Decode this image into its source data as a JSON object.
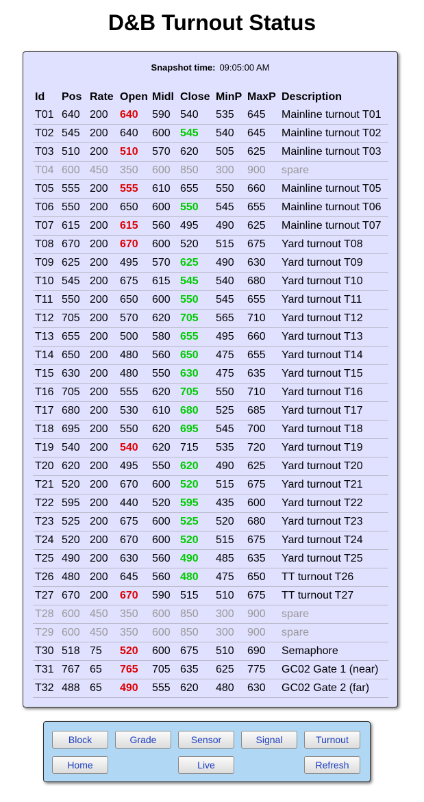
{
  "title": "D&B Turnout Status",
  "snapshot": {
    "label": "Snapshot time:",
    "time": "09:05:00 AM"
  },
  "columns": [
    "Id",
    "Pos",
    "Rate",
    "Open",
    "Midl",
    "Close",
    "MinP",
    "MaxP",
    "Description"
  ],
  "rows": [
    {
      "id": "T01",
      "pos": "640",
      "rate": "200",
      "open": "640",
      "midl": "590",
      "close": "540",
      "minp": "535",
      "maxp": "645",
      "desc": "Mainline turnout T01",
      "state": "open"
    },
    {
      "id": "T02",
      "pos": "545",
      "rate": "200",
      "open": "640",
      "midl": "600",
      "close": "545",
      "minp": "540",
      "maxp": "645",
      "desc": "Mainline turnout T02",
      "state": "close"
    },
    {
      "id": "T03",
      "pos": "510",
      "rate": "200",
      "open": "510",
      "midl": "570",
      "close": "620",
      "minp": "505",
      "maxp": "625",
      "desc": "Mainline turnout T03",
      "state": "open"
    },
    {
      "id": "T04",
      "pos": "600",
      "rate": "450",
      "open": "350",
      "midl": "600",
      "close": "850",
      "minp": "300",
      "maxp": "900",
      "desc": "spare",
      "state": "spare"
    },
    {
      "id": "T05",
      "pos": "555",
      "rate": "200",
      "open": "555",
      "midl": "610",
      "close": "655",
      "minp": "550",
      "maxp": "660",
      "desc": "Mainline turnout T05",
      "state": "open"
    },
    {
      "id": "T06",
      "pos": "550",
      "rate": "200",
      "open": "650",
      "midl": "600",
      "close": "550",
      "minp": "545",
      "maxp": "655",
      "desc": "Mainline turnout T06",
      "state": "close"
    },
    {
      "id": "T07",
      "pos": "615",
      "rate": "200",
      "open": "615",
      "midl": "560",
      "close": "495",
      "minp": "490",
      "maxp": "625",
      "desc": "Mainline turnout T07",
      "state": "open"
    },
    {
      "id": "T08",
      "pos": "670",
      "rate": "200",
      "open": "670",
      "midl": "600",
      "close": "520",
      "minp": "515",
      "maxp": "675",
      "desc": "Yard turnout T08",
      "state": "open"
    },
    {
      "id": "T09",
      "pos": "625",
      "rate": "200",
      "open": "495",
      "midl": "570",
      "close": "625",
      "minp": "490",
      "maxp": "630",
      "desc": "Yard turnout T09",
      "state": "close"
    },
    {
      "id": "T10",
      "pos": "545",
      "rate": "200",
      "open": "675",
      "midl": "615",
      "close": "545",
      "minp": "540",
      "maxp": "680",
      "desc": "Yard turnout T10",
      "state": "close"
    },
    {
      "id": "T11",
      "pos": "550",
      "rate": "200",
      "open": "650",
      "midl": "600",
      "close": "550",
      "minp": "545",
      "maxp": "655",
      "desc": "Yard turnout T11",
      "state": "close"
    },
    {
      "id": "T12",
      "pos": "705",
      "rate": "200",
      "open": "570",
      "midl": "620",
      "close": "705",
      "minp": "565",
      "maxp": "710",
      "desc": "Yard turnout T12",
      "state": "close"
    },
    {
      "id": "T13",
      "pos": "655",
      "rate": "200",
      "open": "500",
      "midl": "580",
      "close": "655",
      "minp": "495",
      "maxp": "660",
      "desc": "Yard turnout T13",
      "state": "close"
    },
    {
      "id": "T14",
      "pos": "650",
      "rate": "200",
      "open": "480",
      "midl": "560",
      "close": "650",
      "minp": "475",
      "maxp": "655",
      "desc": "Yard turnout T14",
      "state": "close"
    },
    {
      "id": "T15",
      "pos": "630",
      "rate": "200",
      "open": "480",
      "midl": "550",
      "close": "630",
      "minp": "475",
      "maxp": "635",
      "desc": "Yard turnout T15",
      "state": "close"
    },
    {
      "id": "T16",
      "pos": "705",
      "rate": "200",
      "open": "555",
      "midl": "620",
      "close": "705",
      "minp": "550",
      "maxp": "710",
      "desc": "Yard turnout T16",
      "state": "close"
    },
    {
      "id": "T17",
      "pos": "680",
      "rate": "200",
      "open": "530",
      "midl": "610",
      "close": "680",
      "minp": "525",
      "maxp": "685",
      "desc": "Yard turnout T17",
      "state": "close"
    },
    {
      "id": "T18",
      "pos": "695",
      "rate": "200",
      "open": "550",
      "midl": "620",
      "close": "695",
      "minp": "545",
      "maxp": "700",
      "desc": "Yard turnout T18",
      "state": "close"
    },
    {
      "id": "T19",
      "pos": "540",
      "rate": "200",
      "open": "540",
      "midl": "620",
      "close": "715",
      "minp": "535",
      "maxp": "720",
      "desc": "Yard turnout T19",
      "state": "open"
    },
    {
      "id": "T20",
      "pos": "620",
      "rate": "200",
      "open": "495",
      "midl": "550",
      "close": "620",
      "minp": "490",
      "maxp": "625",
      "desc": "Yard turnout T20",
      "state": "close"
    },
    {
      "id": "T21",
      "pos": "520",
      "rate": "200",
      "open": "670",
      "midl": "600",
      "close": "520",
      "minp": "515",
      "maxp": "675",
      "desc": "Yard turnout T21",
      "state": "close"
    },
    {
      "id": "T22",
      "pos": "595",
      "rate": "200",
      "open": "440",
      "midl": "520",
      "close": "595",
      "minp": "435",
      "maxp": "600",
      "desc": "Yard turnout T22",
      "state": "close"
    },
    {
      "id": "T23",
      "pos": "525",
      "rate": "200",
      "open": "675",
      "midl": "600",
      "close": "525",
      "minp": "520",
      "maxp": "680",
      "desc": "Yard turnout T23",
      "state": "close"
    },
    {
      "id": "T24",
      "pos": "520",
      "rate": "200",
      "open": "670",
      "midl": "600",
      "close": "520",
      "minp": "515",
      "maxp": "675",
      "desc": "Yard turnout T24",
      "state": "close"
    },
    {
      "id": "T25",
      "pos": "490",
      "rate": "200",
      "open": "630",
      "midl": "560",
      "close": "490",
      "minp": "485",
      "maxp": "635",
      "desc": "Yard turnout T25",
      "state": "close"
    },
    {
      "id": "T26",
      "pos": "480",
      "rate": "200",
      "open": "645",
      "midl": "560",
      "close": "480",
      "minp": "475",
      "maxp": "650",
      "desc": "TT turnout T26",
      "state": "close"
    },
    {
      "id": "T27",
      "pos": "670",
      "rate": "200",
      "open": "670",
      "midl": "590",
      "close": "515",
      "minp": "510",
      "maxp": "675",
      "desc": "TT turnout T27",
      "state": "open"
    },
    {
      "id": "T28",
      "pos": "600",
      "rate": "450",
      "open": "350",
      "midl": "600",
      "close": "850",
      "minp": "300",
      "maxp": "900",
      "desc": "spare",
      "state": "spare"
    },
    {
      "id": "T29",
      "pos": "600",
      "rate": "450",
      "open": "350",
      "midl": "600",
      "close": "850",
      "minp": "300",
      "maxp": "900",
      "desc": "spare",
      "state": "spare"
    },
    {
      "id": "T30",
      "pos": "518",
      "rate": "75",
      "open": "520",
      "midl": "600",
      "close": "675",
      "minp": "510",
      "maxp": "690",
      "desc": "Semaphore",
      "state": "open"
    },
    {
      "id": "T31",
      "pos": "767",
      "rate": "65",
      "open": "765",
      "midl": "705",
      "close": "635",
      "minp": "625",
      "maxp": "775",
      "desc": "GC02 Gate 1 (near)",
      "state": "open"
    },
    {
      "id": "T32",
      "pos": "488",
      "rate": "65",
      "open": "490",
      "midl": "555",
      "close": "620",
      "minp": "480",
      "maxp": "630",
      "desc": "GC02 Gate 2 (far)",
      "state": "open"
    }
  ],
  "nav": {
    "block": "Block",
    "grade": "Grade",
    "sensor": "Sensor",
    "signal": "Signal",
    "turnout": "Turnout",
    "home": "Home",
    "live": "Live",
    "refresh": "Refresh"
  },
  "colors": {
    "panel_bg": "#e0e0ff",
    "nav_bg": "#b0d8f4",
    "open_highlight": "#dd0000",
    "close_highlight": "#00cc00",
    "spare_text": "#999999",
    "button_text": "#1a3cc0"
  }
}
